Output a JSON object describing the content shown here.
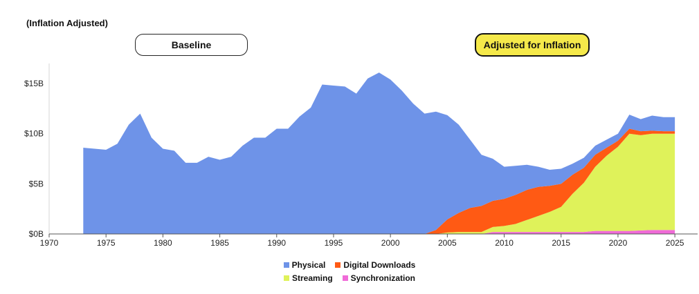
{
  "header": {
    "subtitle": "(Inflation Adjusted)",
    "toggle_baseline": "Baseline",
    "toggle_adjusted": "Adjusted for Inflation"
  },
  "chart_data": {
    "type": "area",
    "stacked": true,
    "title": "",
    "subtitle": "(Inflation Adjusted)",
    "xlabel": "",
    "ylabel": "",
    "xlim": [
      1970,
      2027
    ],
    "ylim": [
      0,
      17
    ],
    "x_ticks": [
      1970,
      1975,
      1980,
      1985,
      1990,
      1995,
      2000,
      2005,
      2010,
      2015,
      2020,
      2025
    ],
    "y_ticks": [
      0,
      5,
      10,
      15
    ],
    "y_tick_labels": [
      "$0B",
      "$5B",
      "$10B",
      "$15B"
    ],
    "x": [
      1973,
      1974,
      1975,
      1976,
      1977,
      1978,
      1979,
      1980,
      1981,
      1982,
      1983,
      1984,
      1985,
      1986,
      1987,
      1988,
      1989,
      1990,
      1991,
      1992,
      1993,
      1994,
      1995,
      1996,
      1997,
      1998,
      1999,
      2000,
      2001,
      2002,
      2003,
      2004,
      2005,
      2006,
      2007,
      2008,
      2009,
      2010,
      2011,
      2012,
      2013,
      2014,
      2015,
      2016,
      2017,
      2018,
      2019,
      2020,
      2021,
      2022,
      2023,
      2024,
      2025
    ],
    "series": [
      {
        "name": "Synchronization",
        "color": "#f06bd8",
        "values": [
          0,
          0,
          0,
          0,
          0,
          0,
          0,
          0,
          0,
          0,
          0,
          0,
          0,
          0,
          0,
          0,
          0,
          0,
          0,
          0,
          0,
          0,
          0,
          0,
          0,
          0,
          0,
          0,
          0,
          0,
          0,
          0,
          0,
          0,
          0,
          0,
          0.2,
          0.2,
          0.2,
          0.2,
          0.2,
          0.2,
          0.2,
          0.2,
          0.2,
          0.3,
          0.3,
          0.3,
          0.3,
          0.35,
          0.4,
          0.4,
          0.4
        ]
      },
      {
        "name": "Streaming",
        "color": "#dff25a",
        "values": [
          0,
          0,
          0,
          0,
          0,
          0,
          0,
          0,
          0,
          0,
          0,
          0,
          0,
          0,
          0,
          0,
          0,
          0,
          0,
          0,
          0,
          0,
          0,
          0,
          0,
          0,
          0,
          0,
          0,
          0,
          0,
          0,
          0.15,
          0.2,
          0.2,
          0.2,
          0.5,
          0.6,
          0.8,
          1.2,
          1.6,
          2.0,
          2.5,
          3.8,
          4.9,
          6.4,
          7.5,
          8.4,
          9.7,
          9.5,
          9.6,
          9.6,
          9.6
        ]
      },
      {
        "name": "Digital Downloads",
        "color": "#ff5a14",
        "values": [
          0,
          0,
          0,
          0,
          0,
          0,
          0,
          0,
          0,
          0,
          0,
          0,
          0,
          0,
          0,
          0,
          0,
          0,
          0,
          0,
          0,
          0,
          0,
          0,
          0,
          0,
          0,
          0,
          0,
          0,
          0,
          0.4,
          1.3,
          1.9,
          2.4,
          2.6,
          2.6,
          2.7,
          2.9,
          3.0,
          2.9,
          2.6,
          2.3,
          1.9,
          1.5,
          1.2,
          0.8,
          0.6,
          0.5,
          0.4,
          0.3,
          0.25,
          0.25
        ]
      },
      {
        "name": "Physical",
        "color": "#6e93e8",
        "values": [
          8.6,
          8.5,
          8.4,
          9.0,
          10.9,
          12.0,
          9.6,
          8.5,
          8.3,
          7.1,
          7.1,
          7.7,
          7.4,
          7.7,
          8.8,
          9.6,
          9.6,
          10.5,
          10.5,
          11.7,
          12.6,
          14.9,
          14.8,
          14.7,
          14.0,
          15.5,
          16.1,
          15.4,
          14.3,
          13.0,
          12.0,
          11.8,
          10.4,
          8.8,
          6.8,
          5.1,
          4.2,
          3.2,
          2.9,
          2.5,
          2.0,
          1.6,
          1.5,
          1.1,
          1.0,
          0.9,
          0.8,
          0.7,
          1.4,
          1.2,
          1.5,
          1.4,
          1.4
        ]
      }
    ],
    "legend": {
      "placement": "bottom-center",
      "rows": [
        [
          "Physical",
          "Digital Downloads"
        ],
        [
          "Streaming",
          "Synchronization"
        ]
      ]
    }
  }
}
